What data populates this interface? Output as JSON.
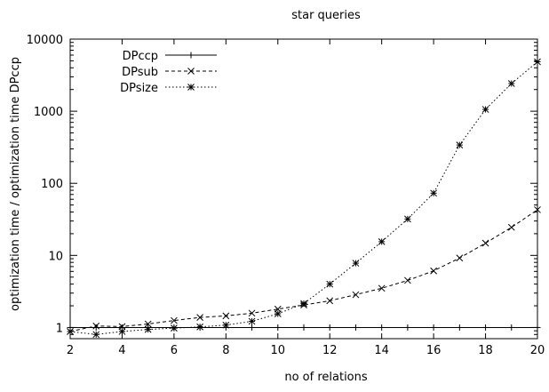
{
  "chart_data": {
    "type": "line",
    "title": "star queries",
    "xlabel": "no of relations",
    "ylabel": "optimization time / optimization time DPccp",
    "xlim": [
      2,
      20
    ],
    "ylim": [
      0.7,
      10000
    ],
    "yscale": "log",
    "grid": false,
    "legend_position": "top-left",
    "x_ticks": [
      "2",
      "4",
      "6",
      "8",
      "10",
      "12",
      "14",
      "16",
      "18",
      "20"
    ],
    "y_ticks": [
      "1",
      "10",
      "100",
      "1000",
      "10000"
    ],
    "series": [
      {
        "name": "DPccp",
        "marker": "plus",
        "dash": "solid",
        "x": [
          2,
          3,
          4,
          5,
          6,
          7,
          8,
          9,
          10,
          11,
          12,
          13,
          14,
          15,
          16,
          17,
          18,
          19,
          20
        ],
        "values": [
          1,
          1,
          1,
          1,
          1,
          1,
          1,
          1,
          1,
          1,
          1,
          1,
          1,
          1,
          1,
          1,
          1,
          1,
          1
        ]
      },
      {
        "name": "DPsub",
        "marker": "cross",
        "dash": "dashed",
        "x": [
          2,
          3,
          4,
          5,
          6,
          7,
          8,
          9,
          10,
          11,
          12,
          13,
          14,
          15,
          16,
          17,
          18,
          19,
          20
        ],
        "values": [
          0.88,
          1.05,
          1.03,
          1.12,
          1.25,
          1.38,
          1.45,
          1.58,
          1.8,
          2.05,
          2.35,
          2.85,
          3.5,
          4.5,
          6.1,
          9.2,
          14.8,
          24.5,
          43
        ]
      },
      {
        "name": "DPsize",
        "marker": "star",
        "dash": "dotted",
        "x": [
          2,
          3,
          4,
          5,
          6,
          7,
          8,
          9,
          10,
          11,
          12,
          13,
          14,
          15,
          16,
          17,
          18,
          19,
          20
        ],
        "values": [
          0.88,
          0.8,
          0.88,
          0.94,
          0.98,
          1.02,
          1.08,
          1.22,
          1.55,
          2.15,
          4.0,
          7.8,
          15.5,
          32,
          73,
          340,
          1060,
          2420,
          4850
        ]
      }
    ]
  }
}
